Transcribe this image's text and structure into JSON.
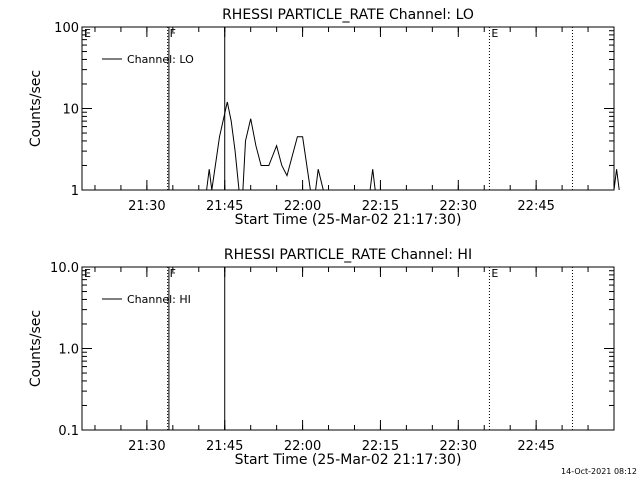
{
  "chart_data": [
    {
      "type": "line",
      "title": "RHESSI PARTICLE_RATE Channel: LO",
      "xlabel": "Start Time (25-Mar-02 21:17:30)",
      "ylabel": "Counts/sec",
      "y_scale": "log",
      "ylim": [
        1,
        100
      ],
      "xlim": [
        "21:17:30",
        "23:00:00"
      ],
      "x_ticks": [
        "21:30",
        "21:45",
        "22:00",
        "22:15",
        "22:30",
        "22:45"
      ],
      "y_ticks": [
        "1",
        "10",
        "100"
      ],
      "legend": {
        "entries": [
          "Channel: LO"
        ],
        "placement": "top-left"
      },
      "grid": false,
      "series": [
        {
          "name": "Channel: LO",
          "x": [
            "21:41:30",
            "21:42:00",
            "21:42:30",
            "21:44:00",
            "21:45:30",
            "21:46:15",
            "21:47:00",
            "21:47:45",
            "21:48:30",
            "21:49:00",
            "21:50:00",
            "21:51:00",
            "21:52:00",
            "21:53:30",
            "21:55:00",
            "21:56:00",
            "21:57:00",
            "21:59:00",
            "22:00:00",
            "22:01:30",
            "22:02:00",
            "22:02:30",
            "22:03:00",
            "22:04:00"
          ],
          "y": [
            1,
            1.8,
            1,
            4.5,
            12,
            7,
            3,
            1,
            1,
            4,
            7.5,
            3.5,
            2,
            2,
            3.5,
            2,
            1.5,
            4.5,
            4.5,
            1,
            1,
            1,
            1.8,
            1
          ]
        }
      ],
      "extra_segments": [
        {
          "x": [
            "22:13:00",
            "22:13:30",
            "22:14:00"
          ],
          "y": [
            1,
            1.8,
            1
          ]
        },
        {
          "x": [
            "23:00:00",
            "23:00:30",
            "23:01:00"
          ],
          "y": [
            1,
            1.8,
            1
          ]
        }
      ],
      "markers": [
        {
          "x": "21:17:30",
          "label": "E",
          "style": "none"
        },
        {
          "x": "21:34:00",
          "label": "F",
          "style": "dotted"
        },
        {
          "x": "21:34:15",
          "label": "",
          "style": "solid"
        },
        {
          "x": "21:45:00",
          "label": "",
          "style": "solid"
        },
        {
          "x": "22:36:00",
          "label": "E",
          "style": "dotted"
        },
        {
          "x": "22:52:00",
          "label": "",
          "style": "dotted"
        }
      ]
    },
    {
      "type": "line",
      "title": "RHESSI PARTICLE_RATE Channel: HI",
      "xlabel": "Start Time (25-Mar-02 21:17:30)",
      "ylabel": "Counts/sec",
      "y_scale": "log",
      "ylim": [
        0.1,
        10
      ],
      "xlim": [
        "21:17:30",
        "23:00:00"
      ],
      "x_ticks": [
        "21:30",
        "21:45",
        "22:00",
        "22:15",
        "22:30",
        "22:45"
      ],
      "y_ticks": [
        "0.1",
        "1.0",
        "10.0"
      ],
      "legend": {
        "entries": [
          "Channel: HI"
        ],
        "placement": "top-left"
      },
      "grid": false,
      "series": [
        {
          "name": "Channel: HI",
          "x": [],
          "y": []
        }
      ],
      "extra_segments": [],
      "markers": [
        {
          "x": "21:17:30",
          "label": "E",
          "style": "none"
        },
        {
          "x": "21:34:00",
          "label": "F",
          "style": "dotted"
        },
        {
          "x": "21:34:15",
          "label": "",
          "style": "solid"
        },
        {
          "x": "21:45:00",
          "label": "",
          "style": "solid"
        },
        {
          "x": "22:36:00",
          "label": "E",
          "style": "dotted"
        },
        {
          "x": "22:52:00",
          "label": "",
          "style": "dotted"
        }
      ]
    }
  ],
  "footer": {
    "timestamp": "14-Oct-2021 08:12"
  }
}
